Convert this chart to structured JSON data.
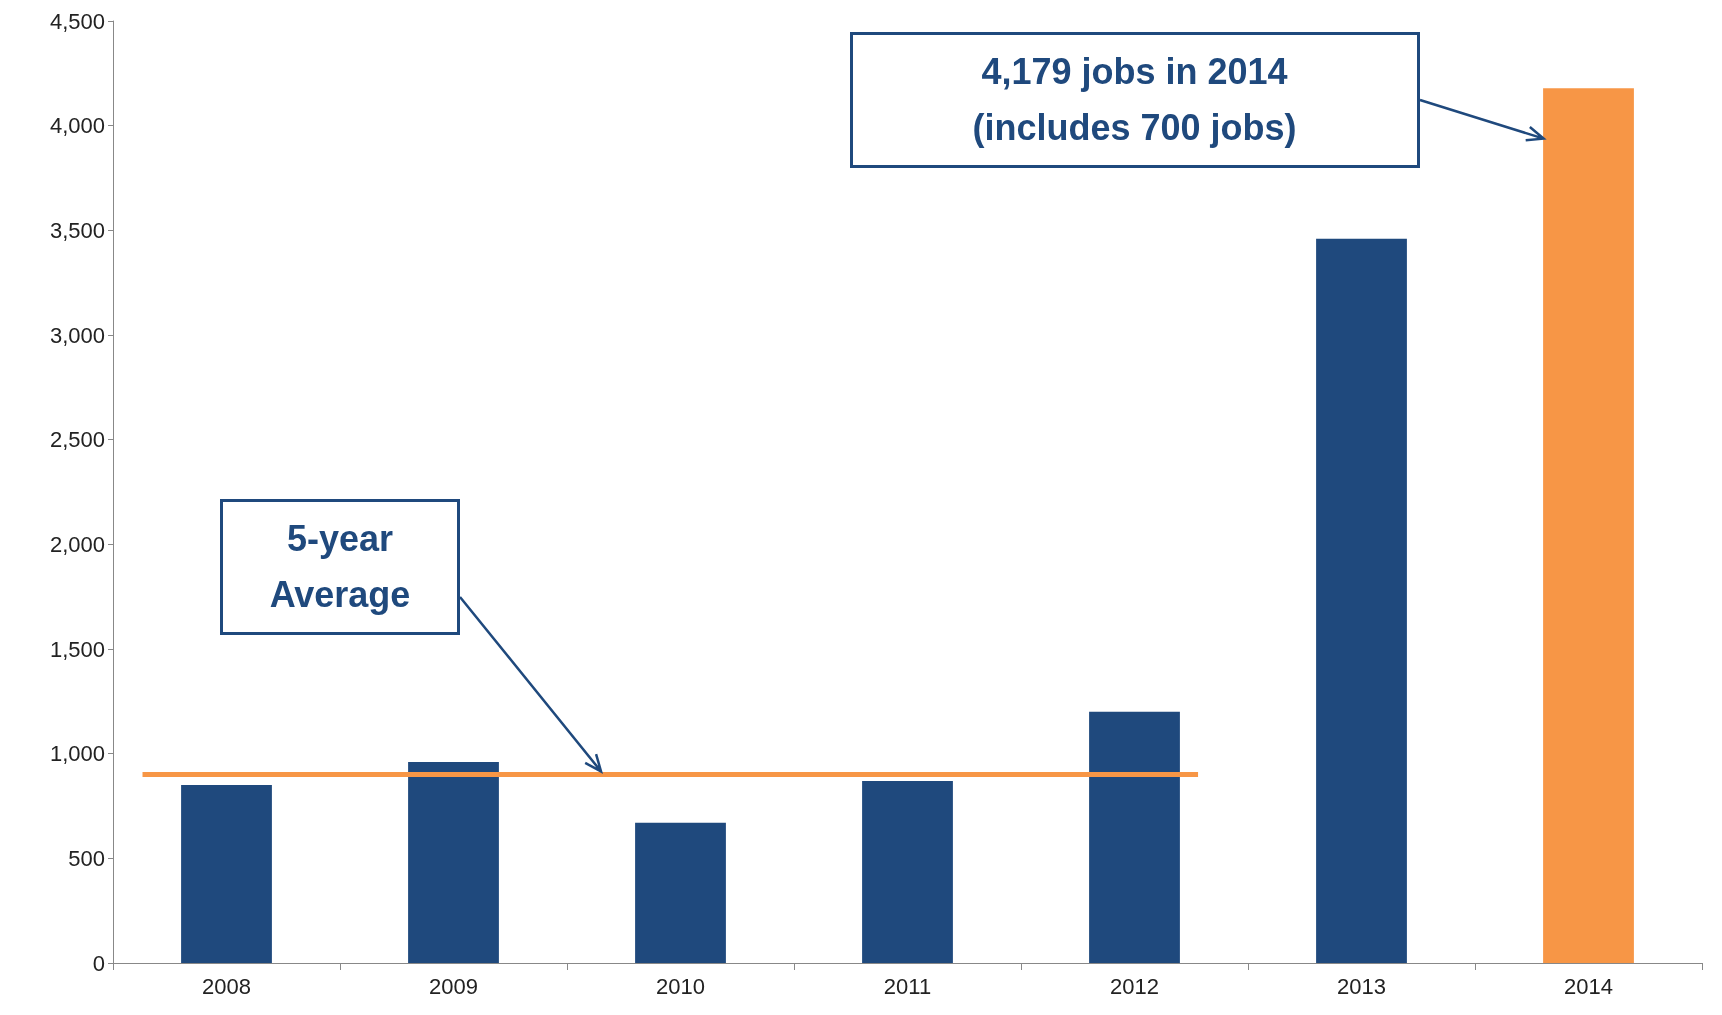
{
  "chart_data": {
    "type": "bar",
    "categories": [
      "2008",
      "2009",
      "2010",
      "2011",
      "2012",
      "2013",
      "2014"
    ],
    "values": [
      850,
      960,
      670,
      870,
      1200,
      3460,
      4179
    ],
    "colors": [
      "#1f497d",
      "#1f497d",
      "#1f497d",
      "#1f497d",
      "#1f497d",
      "#1f497d",
      "#f79646"
    ],
    "ylim": [
      0,
      4500
    ],
    "yticks": [
      {
        "value": 0,
        "label": "0"
      },
      {
        "value": 500,
        "label": "500"
      },
      {
        "value": 1000,
        "label": "1,000"
      },
      {
        "value": 1500,
        "label": "1,500"
      },
      {
        "value": 2000,
        "label": "2,000"
      },
      {
        "value": 2500,
        "label": "2,500"
      },
      {
        "value": 3000,
        "label": "3,000"
      },
      {
        "value": 3500,
        "label": "3,500"
      },
      {
        "value": 4000,
        "label": "4,000"
      },
      {
        "value": 4500,
        "label": "4,500"
      }
    ],
    "grid": false,
    "ref_lines": [
      {
        "axis": "y",
        "value": 900,
        "color": "#f79646"
      }
    ],
    "annotations": [
      "5-year\nAverage",
      "4,179 jobs in 2014\n(includes 700 jobs)"
    ]
  }
}
